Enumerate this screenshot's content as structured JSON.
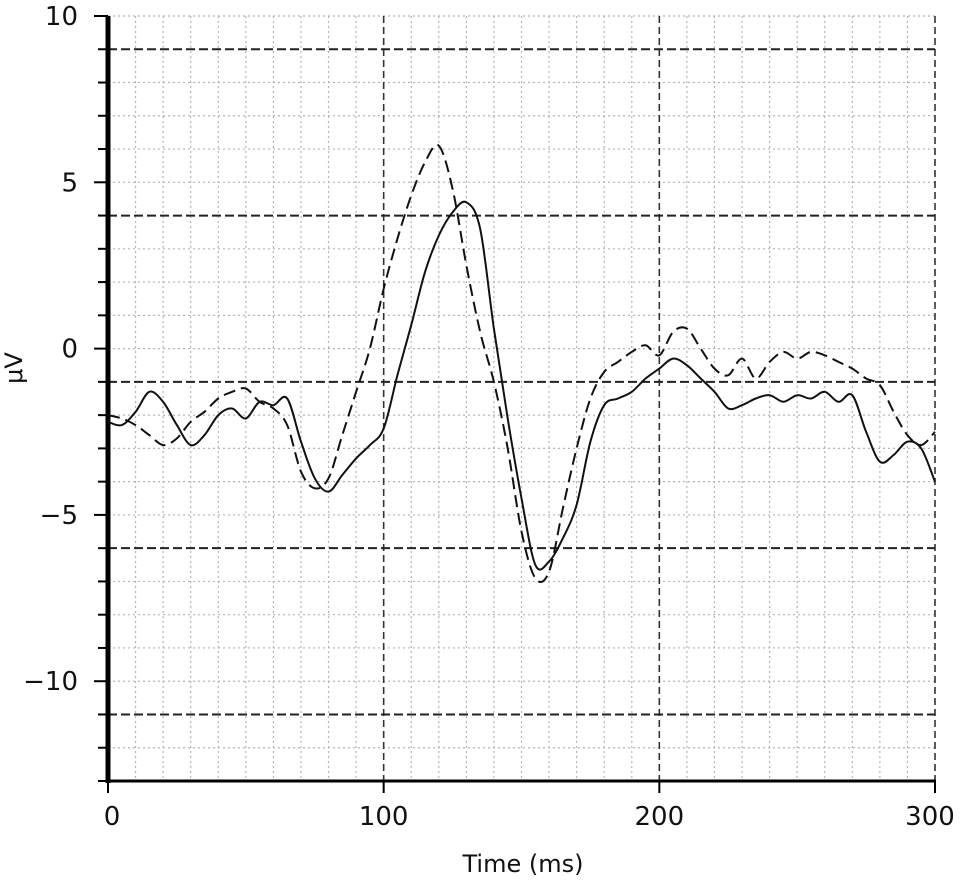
{
  "chart_data": {
    "type": "line",
    "xlabel": "Time (ms)",
    "ylabel": "μV",
    "xlim": [
      0,
      300
    ],
    "ylim": [
      -13,
      10
    ],
    "x_ticks": [
      0,
      100,
      200,
      300
    ],
    "x_tick_labels": [
      "0",
      "100",
      "200",
      "300"
    ],
    "y_ticks": [
      10,
      5,
      0,
      -5,
      -10
    ],
    "y_tick_labels": [
      "10",
      "5",
      "0",
      "−5",
      "−10"
    ],
    "y_minor_step": 1,
    "x_minor_step": 10,
    "reference_lines_y": [
      9,
      4,
      -1,
      -6,
      -11
    ],
    "grid": true,
    "legend": "none",
    "series": [
      {
        "style": "solid",
        "color": "#111111",
        "x": [
          0,
          5,
          10,
          15,
          20,
          25,
          30,
          35,
          40,
          45,
          50,
          55,
          60,
          65,
          70,
          75,
          80,
          85,
          90,
          95,
          100,
          105,
          110,
          115,
          120,
          125,
          130,
          135,
          140,
          145,
          150,
          155,
          160,
          165,
          170,
          175,
          180,
          185,
          190,
          195,
          200,
          205,
          210,
          215,
          220,
          225,
          230,
          235,
          240,
          245,
          250,
          255,
          260,
          265,
          270,
          275,
          280,
          285,
          290,
          295,
          300
        ],
        "y": [
          -2.2,
          -2.3,
          -1.9,
          -1.3,
          -1.6,
          -2.3,
          -2.9,
          -2.6,
          -2.0,
          -1.8,
          -2.1,
          -1.6,
          -1.7,
          -1.5,
          -2.8,
          -3.9,
          -4.3,
          -3.8,
          -3.3,
          -2.9,
          -2.4,
          -0.8,
          0.7,
          2.3,
          3.4,
          4.1,
          4.4,
          3.6,
          0.6,
          -2.1,
          -4.5,
          -6.5,
          -6.4,
          -5.7,
          -4.7,
          -2.8,
          -1.7,
          -1.5,
          -1.3,
          -0.9,
          -0.6,
          -0.3,
          -0.5,
          -0.9,
          -1.3,
          -1.8,
          -1.7,
          -1.5,
          -1.4,
          -1.6,
          -1.4,
          -1.5,
          -1.3,
          -1.6,
          -1.4,
          -2.5,
          -3.4,
          -3.2,
          -2.8,
          -3.0,
          -4.0
        ]
      },
      {
        "style": "dashed",
        "color": "#111111",
        "x": [
          0,
          5,
          10,
          15,
          20,
          25,
          30,
          35,
          40,
          45,
          50,
          55,
          60,
          65,
          70,
          75,
          80,
          85,
          90,
          95,
          100,
          105,
          110,
          115,
          120,
          125,
          130,
          135,
          140,
          145,
          150,
          155,
          160,
          165,
          170,
          175,
          180,
          185,
          190,
          195,
          200,
          205,
          210,
          215,
          220,
          225,
          230,
          235,
          240,
          245,
          250,
          255,
          260,
          265,
          270,
          275,
          280,
          285,
          290,
          295,
          300
        ],
        "y": [
          -2.0,
          -2.1,
          -2.3,
          -2.6,
          -2.9,
          -2.7,
          -2.2,
          -1.9,
          -1.5,
          -1.3,
          -1.2,
          -1.6,
          -1.8,
          -2.3,
          -3.7,
          -4.2,
          -3.9,
          -2.6,
          -1.3,
          0.0,
          1.8,
          3.3,
          4.6,
          5.6,
          6.1,
          4.8,
          2.5,
          0.5,
          -1.0,
          -3.0,
          -5.5,
          -6.9,
          -6.7,
          -4.8,
          -3.0,
          -1.5,
          -0.7,
          -0.4,
          -0.1,
          0.1,
          -0.2,
          0.5,
          0.6,
          0.0,
          -0.6,
          -0.8,
          -0.3,
          -0.9,
          -0.4,
          -0.1,
          -0.3,
          -0.1,
          -0.2,
          -0.4,
          -0.6,
          -0.9,
          -1.1,
          -1.9,
          -2.6,
          -2.9,
          -2.5
        ]
      }
    ]
  }
}
